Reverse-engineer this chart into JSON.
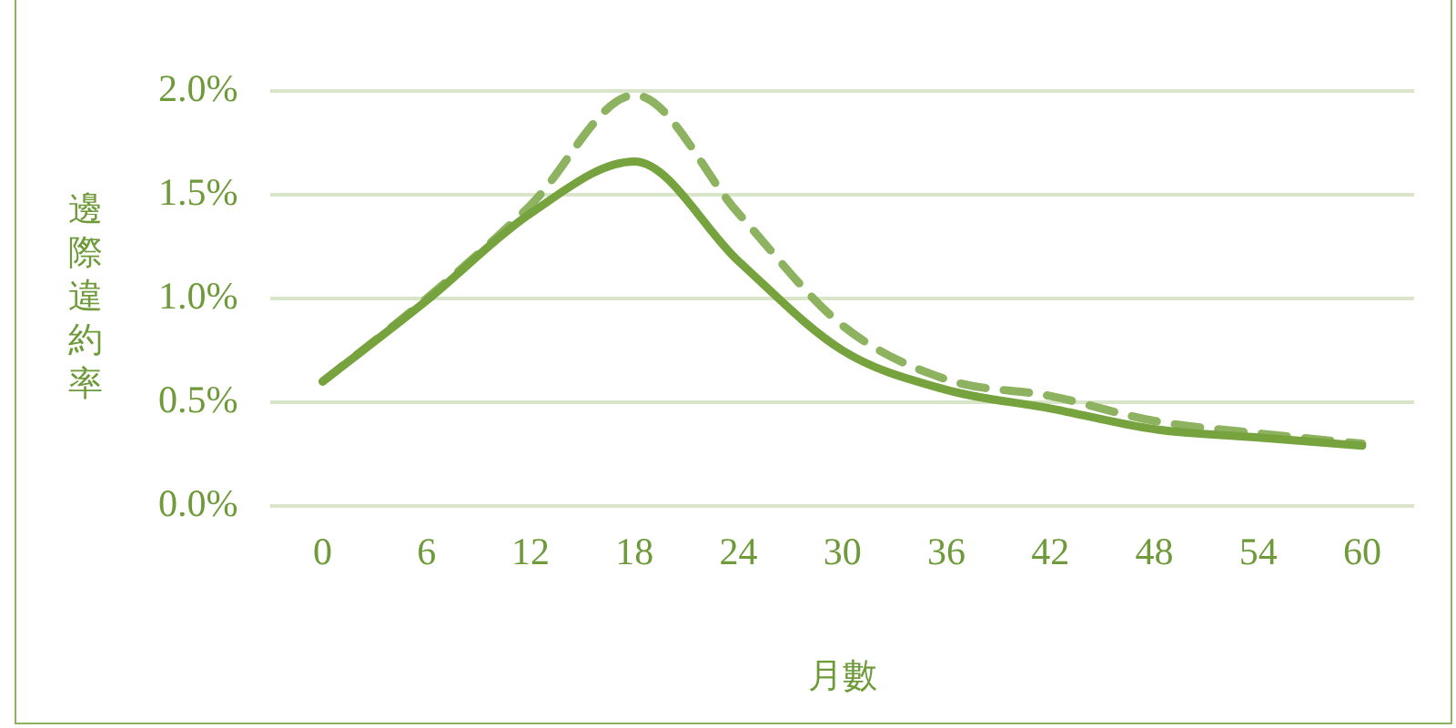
{
  "chart_data": {
    "type": "line",
    "xlabel": "月數",
    "ylabel": "邊際違約率",
    "categories": [
      "0",
      "6",
      "12",
      "18",
      "24",
      "30",
      "36",
      "42",
      "48",
      "54",
      "60"
    ],
    "series": [
      {
        "color": "#77a33f",
        "line_style": "solid",
        "values": [
          0.6,
          0.99,
          1.41,
          1.66,
          1.18,
          0.75,
          0.56,
          0.47,
          0.37,
          0.33,
          0.29
        ]
      },
      {
        "color": "#8db360",
        "line_style": "dashed",
        "values": [
          0.6,
          1.0,
          1.45,
          1.98,
          1.41,
          0.87,
          0.61,
          0.53,
          0.41,
          0.35,
          0.3
        ]
      }
    ],
    "ylim": [
      0,
      2
    ],
    "yticks": [
      {
        "value": 0,
        "label": "0.0%"
      },
      {
        "value": 0.5,
        "label": "0.5%"
      },
      {
        "value": 1,
        "label": "1.0%"
      },
      {
        "value": 1.5,
        "label": "1.5%"
      },
      {
        "value": 2,
        "label": "2.0%"
      }
    ],
    "grid": "y",
    "legend": false,
    "marker": "none"
  }
}
